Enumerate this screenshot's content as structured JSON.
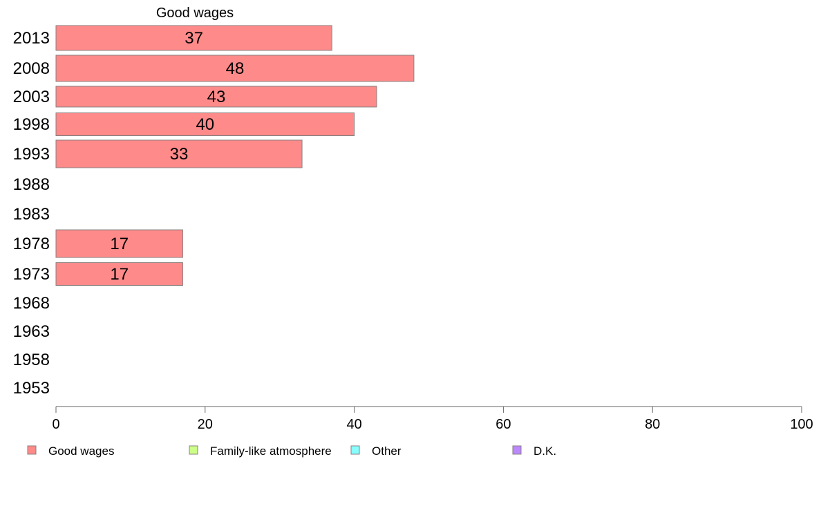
{
  "chart_data": {
    "type": "bar",
    "orientation": "horizontal",
    "title": "Good wages",
    "categories": [
      "2013",
      "2008",
      "2003",
      "1998",
      "1993",
      "1988",
      "1983",
      "1978",
      "1973",
      "1968",
      "1963",
      "1958",
      "1953"
    ],
    "series": [
      {
        "name": "Good wages",
        "color": "#ff8a8a",
        "values": [
          37,
          48,
          43,
          40,
          33,
          null,
          null,
          17,
          17,
          null,
          null,
          null,
          null
        ]
      }
    ],
    "xlim": [
      0,
      100
    ],
    "xticks": [
      0,
      20,
      40,
      60,
      80,
      100
    ],
    "grid": false,
    "legend_position": "bottom",
    "legend": [
      {
        "label": "Good wages",
        "color": "#ff8a8a"
      },
      {
        "label": "Family-like atmosphere",
        "color": "#ccff88"
      },
      {
        "label": "Other",
        "color": "#88ffff"
      },
      {
        "label": "D.K.",
        "color": "#bb88ff"
      }
    ]
  }
}
